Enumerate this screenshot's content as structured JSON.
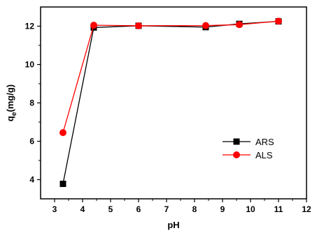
{
  "chart_data": {
    "type": "line",
    "title": "",
    "xlabel": "pH",
    "ylabel_main": "q",
    "ylabel_sub": "e",
    "ylabel_rest": "(mg/g)",
    "xlim": [
      2.5,
      12
    ],
    "ylim": [
      3.0,
      13.0
    ],
    "xticks": [
      3,
      4,
      5,
      6,
      7,
      8,
      9,
      10,
      11,
      12
    ],
    "yticks": [
      4,
      6,
      8,
      10,
      12
    ],
    "grid": false,
    "legend_position": "right-middle",
    "series": [
      {
        "name": "ARS",
        "color": "#000000",
        "marker": "square",
        "x": [
          3.3,
          4.4,
          6.0,
          8.4,
          9.6,
          11.0
        ],
        "y": [
          3.78,
          11.93,
          12.02,
          11.95,
          12.12,
          12.25
        ]
      },
      {
        "name": "ALS",
        "color": "#ff0000",
        "marker": "circle",
        "x": [
          3.3,
          4.4,
          6.0,
          8.4,
          9.6,
          11.0
        ],
        "y": [
          6.45,
          12.05,
          12.02,
          12.03,
          12.08,
          12.26
        ]
      }
    ]
  }
}
